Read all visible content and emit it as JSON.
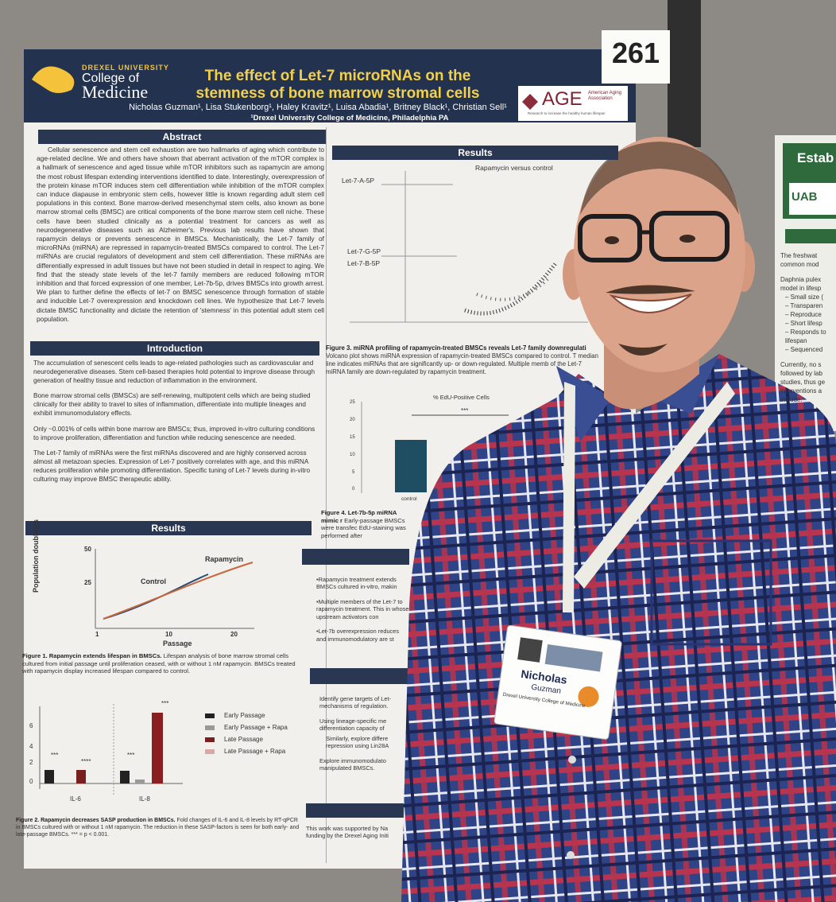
{
  "tag_number": "261",
  "poster": {
    "university": "DREXEL UNIVERSITY",
    "college": "College of",
    "medicine": "Medicine",
    "title": "The effect of Let-7 microRNAs on the stemness of bone marrow stromal cells",
    "authors": "Nicholas Guzman¹, Lisa Stukenborg¹, Haley Kravitz¹, Luisa Abadia¹, Britney Black¹, Christian Sell¹",
    "affiliation": "¹Drexel University College of Medicine, Philadelphia PA",
    "sponsor": {
      "logo": "AGE",
      "name": "American Aging Association",
      "tagline": "Research to increase the healthy human lifespan"
    },
    "abstract": {
      "heading": "Abstract",
      "text": "Cellular senescence and stem cell exhaustion are two hallmarks of aging which contribute to age-related decline. We and others have shown that aberrant activation of the mTOR complex is a hallmark of senescence and aged tissue while mTOR inhibitors such as rapamycin are among the most robust lifespan extending interventions identified to date. Interestingly, overexpression of the protein kinase mTOR induces stem cell differentiation while inhibition of the mTOR complex can induce diapause in embryonic stem cells, however little is known regarding adult stem cell populations in this context. Bone marrow-derived mesenchymal stem cells, also known as bone marrow stromal cells (BMSC) are critical components of the bone marrow stem cell niche. These cells have been studied clinically as a potential treatment for cancers as well as neurodegenerative diseases such as Alzheimer's. Previous lab results have shown that rapamycin delays or prevents senescence in BMSCs. Mechanistically, the Let-7 family of microRNAs (miRNA) are repressed in rapamycin-treated BMSCs compared to control. The Let-7 miRNAs are crucial regulators of development and stem cell differentiation. These miRNAs are differentially expressed in adult tissues but have not been studied in detail in respect to aging. We find that the steady state levels of the let-7 family members are reduced following mTOR inhibition and that forced expression of one member, Let-7b-5p, drives BMSCs into growth arrest. We plan to further define the effects of let-7 on BMSC senescence through formation of stable and inducible Let-7 overexpression and knockdown cell lines. We hypothesize that Let-7 levels dictate BMSC functionality and dictate the retention of 'stemness' in this potential adult stem cell population."
    },
    "introduction": {
      "heading": "Introduction",
      "bullets": [
        "The accumulation of senescent cells leads to age-related pathologies such as cardiovascular and neurodegenerative diseases. Stem cell-based therapies hold potential to improve disease through generation of healthy tissue and reduction of inflammation in the environment.",
        "Bone marrow stromal cells (BMSCs) are self-renewing, multipotent cells which are being studied clinically for their ability to travel to sites of inflammation, differentiate into multiple lineages and exhibit immunomodulatory effects.",
        "Only ~0.001% of cells within bone marrow are BMSCs; thus, improved in-vitro culturing conditions to improve proliferation, differentiation and function while reducing senescence are needed.",
        "The Let-7 family of miRNAs were the first miRNAs discovered and are highly conserved across almost all metazoan species. Expression of Let-7 positively correlates with age, and this miRNA reduces proliferation while promoting differentiation. Specific tuning of Let-7 levels during in-vitro culturing may improve BMSC therapeutic ability."
      ]
    },
    "results_left": {
      "heading": "Results",
      "figure1": {
        "y_label": "Population doublings",
        "y_ticks": [
          "50",
          "25"
        ],
        "x_ticks": [
          "1",
          "10",
          "20"
        ],
        "x_label": "Passage",
        "series": [
          "Control",
          "Rapamycin"
        ],
        "caption_title": "Figure 1. Rapamycin extends lifespan in BMSCs.",
        "caption": "Lifespan analysis of bone marrow stromal cells cultured from initial passage until proliferation ceased, with or without 1 nM rapamycin. BMSCs treated with rapamycin display increased lifespan compared to control."
      },
      "figure2": {
        "y_ticks": [
          "6",
          "4",
          "2",
          "0"
        ],
        "groups": [
          "IL-6",
          "IL-8"
        ],
        "stars": [
          "***",
          "****",
          "***",
          "***"
        ],
        "legend": [
          "Early Passage",
          "Early Passage + Rapa",
          "Late Passage",
          "Late Passage + Rapa"
        ],
        "caption_title": "Figure 2. Rapamycin decreases SASP production in BMSCs.",
        "caption": "Fold changes of IL-6 and IL-8 levels by RT-qPCR in BMSCs cultured with or without 1 nM rapamycin. The reduction in these SASP-factors is seen for both early- and late-passage BMSCs. *** = p < 0.001."
      }
    },
    "results_right": {
      "heading": "Results",
      "figure3": {
        "title": "Rapamycin versus control",
        "labels": [
          "Let-7-A-5P",
          "Let-7-G-5P",
          "Let-7-B-5P"
        ],
        "caption_title": "Figure 3. miRNA profiling of rapamycin-treated BMSCs reveals Let-7 family downregulati",
        "caption": "Volcano plot shows miRNA expression of rapamycin-treated BMSCs compared to control. T median line indicates miRNAs that are significantly up- or down-regulated. Multiple memb of the Let-7 miRNA family are down-regulated by rapamycin treatment."
      },
      "figure4": {
        "title": "% EdU-Positive Cells",
        "y_ticks": [
          "25",
          "20",
          "15",
          "10",
          "5",
          "0"
        ],
        "stars": "***",
        "category": "control",
        "caption_title": "Figure 4. Let-7b-5p miRNA mimic r",
        "caption": "Early-passage BMSCs were transfec EdU-staining was performed after"
      },
      "conclusions": [
        "•Rapamycin treatment extends BMSCs cultured in-vitro, makin",
        "•Multiple members of the Let-7 to rapamycin treatment. This in whose upstream activators con",
        "•Let-7b overexpression reduces and immunomodulatory are st"
      ],
      "future": [
        "Identify gene targets of Let- mechanisms of regulation.",
        "Using lineage-specific me differentiation capacity of",
        "Similarly, explore differe repression using Lin28A",
        "Explore immunomodulato manipulated BMSCs."
      ],
      "acknowledgement": "This work was supported by Na funding by the Drexel Aging Initi"
    }
  },
  "badge": {
    "first": "Nicholas",
    "last": "Guzman",
    "org": "Drexel University College of Medicine"
  },
  "side_poster": {
    "title": "Estab",
    "logo": "UAB",
    "bullets": [
      "The freshwat common mod",
      "Daphnia pulex model in lifesp",
      "– Small size (",
      "– Transparen",
      "– Reproduce",
      "– Short lifesp",
      "– Responds to lifespan",
      "– Sequenced",
      "Currently, no s followed by lab studies, thus ge interventions a include:"
    ]
  }
}
